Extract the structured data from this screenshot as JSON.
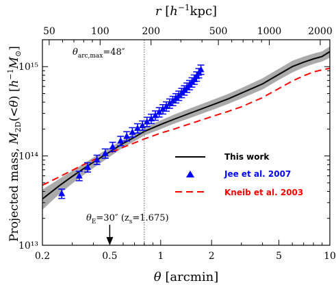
{
  "chart_data": {
    "type": "line",
    "x_axis": {
      "label": "θ [arcmin]",
      "scale": "log",
      "range": [
        0.2,
        10
      ],
      "ticks": [
        0.2,
        0.5,
        1,
        2,
        5,
        10
      ],
      "tick_labels": [
        "0.2",
        "0.5",
        "1",
        "2",
        "5",
        "10"
      ]
    },
    "top_axis": {
      "label": "r [h⁻¹kpc]",
      "scale": "log",
      "ticks": [
        50,
        100,
        200,
        500,
        1000,
        2000
      ],
      "tick_labels": [
        "50",
        "100",
        "200",
        "500",
        "1000",
        "2000"
      ]
    },
    "y_axis": {
      "label": "Projected mass, M2D(<θ) [h⁻¹M☉]",
      "scale": "log",
      "range": [
        10000000000000.0,
        2000000000000000.0
      ],
      "ticks": [
        10000000000000.0,
        100000000000000.0,
        1000000000000000.0
      ],
      "tick_labels": [
        "10¹³",
        "10¹⁴",
        "10¹⁵"
      ]
    },
    "series": [
      {
        "name": "This work",
        "style": "solid-line",
        "color": "#000000",
        "x": [
          0.2,
          0.25,
          0.3,
          0.35,
          0.4,
          0.5,
          0.6,
          0.7,
          0.8,
          1.0,
          1.2,
          1.5,
          2.0,
          2.5,
          3.0,
          4.0,
          5.0,
          6.0,
          7.0,
          8.0,
          9.0,
          10.0
        ],
        "y": [
          33000000000000.0,
          46000000000000.0,
          59000000000000.0,
          72000000000000.0,
          85000000000000.0,
          111000000000000.0,
          138000000000000.0,
          162000000000000.0,
          188000000000000.0,
          225000000000000.0,
          258000000000000.0,
          302000000000000.0,
          370000000000000.0,
          435000000000000.0,
          505000000000000.0,
          640000000000000.0,
          820000000000000.0,
          1000000000000000.0,
          1120000000000000.0,
          1220000000000000.0,
          1300000000000000.0,
          1470000000000000.0
        ],
        "band_lower": [
          25000000000000.0,
          37000000000000.0,
          49000000000000.0,
          61000000000000.0,
          73000000000000.0,
          98000000000000.0,
          124000000000000.0,
          146000000000000.0,
          169000000000000.0,
          200000000000000.0,
          230000000000000.0,
          267000000000000.0,
          325000000000000.0,
          382000000000000.0,
          440000000000000.0,
          555000000000000.0,
          710000000000000.0,
          860000000000000.0,
          980000000000000.0,
          1070000000000000.0,
          1140000000000000.0,
          1260000000000000.0
        ],
        "band_upper": [
          42000000000000.0,
          55000000000000.0,
          68000000000000.0,
          82000000000000.0,
          96000000000000.0,
          124000000000000.0,
          152000000000000.0,
          178000000000000.0,
          208000000000000.0,
          250000000000000.0,
          290000000000000.0,
          342000000000000.0,
          420000000000000.0,
          495000000000000.0,
          575000000000000.0,
          740000000000000.0,
          950000000000000.0,
          1160000000000000.0,
          1290000000000000.0,
          1400000000000000.0,
          1480000000000000.0,
          1680000000000000.0
        ],
        "band_color": "#aaaaaa"
      },
      {
        "name": "Jee et al. 2007",
        "style": "markers-with-errorbars",
        "marker": "triangle",
        "color": "#0000ff",
        "x": [
          0.26,
          0.33,
          0.37,
          0.42,
          0.47,
          0.52,
          0.58,
          0.63,
          0.68,
          0.73,
          0.78,
          0.83,
          0.88,
          0.93,
          0.98,
          1.03,
          1.08,
          1.13,
          1.18,
          1.23,
          1.28,
          1.33,
          1.38,
          1.43,
          1.48,
          1.53,
          1.58,
          1.63,
          1.68,
          1.73
        ],
        "y": [
          38000000000000.0,
          60000000000000.0,
          75000000000000.0,
          91000000000000.0,
          107000000000000.0,
          127000000000000.0,
          148000000000000.0,
          167000000000000.0,
          185000000000000.0,
          205000000000000.0,
          220000000000000.0,
          242000000000000.0,
          262000000000000.0,
          285000000000000.0,
          310000000000000.0,
          335000000000000.0,
          360000000000000.0,
          388000000000000.0,
          415000000000000.0,
          445000000000000.0,
          475000000000000.0,
          510000000000000.0,
          545000000000000.0,
          585000000000000.0,
          625000000000000.0,
          670000000000000.0,
          720000000000000.0,
          780000000000000.0,
          850000000000000.0,
          930000000000000.0
        ],
        "y_err_frac": 0.12
      },
      {
        "name": "Kneib et al. 2003",
        "style": "dashed-line",
        "color": "#ff0000",
        "x": [
          0.2,
          0.25,
          0.3,
          0.35,
          0.4,
          0.5,
          0.6,
          0.7,
          0.8,
          1.0,
          1.2,
          1.5,
          2.0,
          2.5,
          3.0,
          4.0,
          5.0,
          6.0,
          7.0,
          8.0,
          9.0,
          10.0
        ],
        "y": [
          47000000000000.0,
          58000000000000.0,
          69000000000000.0,
          80000000000000.0,
          90000000000000.0,
          108000000000000.0,
          125000000000000.0,
          140000000000000.0,
          155000000000000.0,
          180000000000000.0,
          200000000000000.0,
          230000000000000.0,
          275000000000000.0,
          315000000000000.0,
          355000000000000.0,
          450000000000000.0,
          570000000000000.0,
          690000000000000.0,
          790000000000000.0,
          870000000000000.0,
          920000000000000.0,
          960000000000000.0
        ]
      }
    ],
    "legend": {
      "placement": "lower-right",
      "entries": [
        "This work",
        "Jee et al. 2007",
        "Kneib et al. 2003"
      ]
    },
    "annotations": {
      "theta_arc_max": {
        "label": "θarc,max=48″",
        "x": 0.8
      },
      "theta_E": {
        "label": "θE=30″ (zs=1.675)",
        "x": 0.5
      }
    },
    "grid": false
  },
  "colors": {
    "this_work": "#000000",
    "band": "#aaaaaa",
    "jee": "#0000ff",
    "kneib": "#ff0000"
  }
}
